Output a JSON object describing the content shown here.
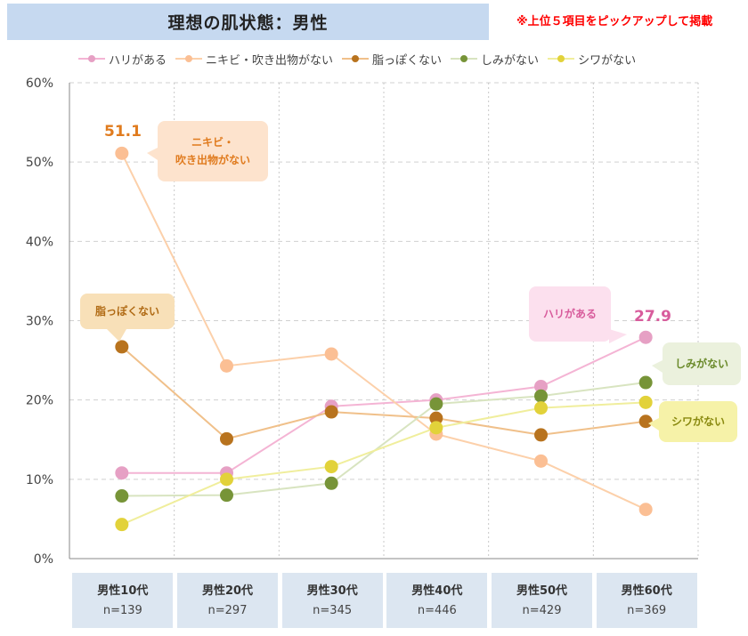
{
  "title": "理想の肌状態：男性",
  "note": "※上位５項目をピックアップして掲載",
  "chart_data": {
    "type": "line",
    "title": "理想の肌状態：男性",
    "xlabel": "",
    "ylabel": "",
    "ylim": [
      0,
      60
    ],
    "y_ticks": [
      "0%",
      "10%",
      "20%",
      "30%",
      "40%",
      "50%",
      "60%"
    ],
    "grid": true,
    "legend_position": "top",
    "categories": [
      "男性10代",
      "男性20代",
      "男性30代",
      "男性40代",
      "男性50代",
      "男性60代"
    ],
    "sample_sizes": [
      "n=139",
      "n=297",
      "n=345",
      "n=446",
      "n=429",
      "n=369"
    ],
    "series": [
      {
        "name": "ハリがある",
        "line_color": "#f4b4d4",
        "marker_color": "#e6a0c4",
        "values": [
          10.8,
          10.8,
          19.2,
          20.0,
          21.7,
          27.9
        ]
      },
      {
        "name": "ニキビ・吹き出物がない",
        "line_color": "#fcd0aa",
        "marker_color": "#fbbf94",
        "values": [
          51.1,
          24.3,
          25.8,
          15.7,
          12.3,
          6.2
        ]
      },
      {
        "name": "脂っぽくない",
        "line_color": "#f0c08a",
        "marker_color": "#b8731e",
        "values": [
          26.7,
          15.1,
          18.5,
          17.7,
          15.6,
          17.3
        ]
      },
      {
        "name": "しみがない",
        "line_color": "#d8e4c0",
        "marker_color": "#779438",
        "values": [
          7.9,
          8.0,
          9.5,
          19.5,
          20.5,
          22.2
        ]
      },
      {
        "name": "シワがない",
        "line_color": "#f0ee9c",
        "marker_color": "#e2d23a",
        "values": [
          4.3,
          10.0,
          11.6,
          16.5,
          19.0,
          19.7
        ]
      }
    ],
    "annotations": [
      {
        "series": "ニキビ・吹き出物がない",
        "label": "ニキビ・\n吹き出物がない",
        "value_label": "51.1",
        "bg": "#fde3cd",
        "color": "#e07b1e"
      },
      {
        "series": "脂っぽくない",
        "label": "脂っぽくない",
        "bg": "#f8e0b8",
        "color": "#b06a14"
      },
      {
        "series": "ハリがある",
        "label": "ハリがある",
        "value_label": "27.9",
        "bg": "#fce0ee",
        "color": "#d85c9c"
      },
      {
        "series": "しみがない",
        "label": "しみがない",
        "bg": "#ebf1dd",
        "color": "#6a8a2a"
      },
      {
        "series": "シワがない",
        "label": "シワがない",
        "bg": "#f6f2a8",
        "color": "#8a8a10"
      }
    ]
  }
}
